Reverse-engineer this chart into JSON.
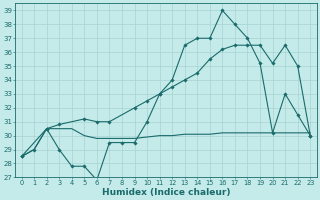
{
  "xlabel": "Humidex (Indice chaleur)",
  "bg_color": "#c5eaea",
  "line_color": "#1a6b6b",
  "grid_color": "#a8d4d4",
  "xlim": [
    -0.5,
    23.5
  ],
  "ylim": [
    27,
    39.5
  ],
  "yticks": [
    27,
    28,
    29,
    30,
    31,
    32,
    33,
    34,
    35,
    36,
    37,
    38,
    39
  ],
  "xticks": [
    0,
    1,
    2,
    3,
    4,
    5,
    6,
    7,
    8,
    9,
    10,
    11,
    12,
    13,
    14,
    15,
    16,
    17,
    18,
    19,
    20,
    21,
    22,
    23
  ],
  "line1_x": [
    0,
    1,
    2,
    3,
    4,
    5,
    6,
    7,
    8,
    9,
    10,
    11,
    12,
    13,
    14,
    15,
    16,
    17,
    18,
    19,
    20,
    21,
    22,
    23
  ],
  "line1_y": [
    28.5,
    29.0,
    30.5,
    29.0,
    27.8,
    27.8,
    26.8,
    29.5,
    29.5,
    29.5,
    31.0,
    33.0,
    34.0,
    36.5,
    37.0,
    37.0,
    39.0,
    38.0,
    37.0,
    35.2,
    30.2,
    33.0,
    31.5,
    30.0
  ],
  "line2_x": [
    0,
    1,
    2,
    3,
    4,
    5,
    6,
    7,
    8,
    9,
    10,
    11,
    12,
    13,
    14,
    15,
    16,
    17,
    18,
    19,
    20,
    21,
    22,
    23
  ],
  "line2_y": [
    28.5,
    29.0,
    30.5,
    30.5,
    30.5,
    30.0,
    29.8,
    29.8,
    29.8,
    29.8,
    29.9,
    30.0,
    30.0,
    30.1,
    30.1,
    30.1,
    30.2,
    30.2,
    30.2,
    30.2,
    30.2,
    30.2,
    30.2,
    30.2
  ],
  "line3_x": [
    0,
    2,
    3,
    5,
    6,
    7,
    9,
    10,
    11,
    12,
    13,
    14,
    15,
    16,
    17,
    18,
    19,
    20,
    21,
    22,
    23
  ],
  "line3_y": [
    28.5,
    30.5,
    30.8,
    31.2,
    31.0,
    31.0,
    32.0,
    32.5,
    33.0,
    33.5,
    34.0,
    34.5,
    35.5,
    36.2,
    36.5,
    36.5,
    36.5,
    35.2,
    36.5,
    35.0,
    30.0
  ]
}
